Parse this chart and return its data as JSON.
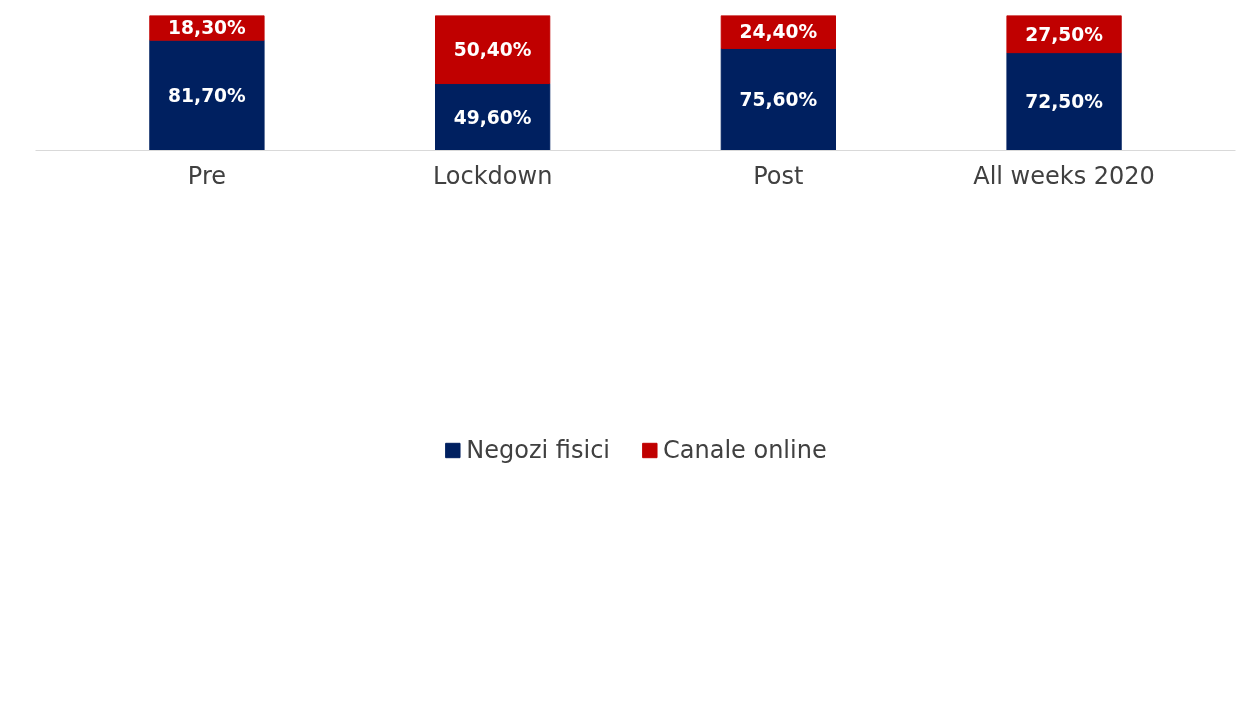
{
  "chart_data": {
    "type": "bar",
    "stacked": true,
    "categories": [
      "Pre",
      "Lockdown",
      "Post",
      "All weeks 2020"
    ],
    "series": [
      {
        "name": "Negozi fisici",
        "color": "#002060",
        "values": [
          81.7,
          49.6,
          75.6,
          72.5
        ],
        "value_labels": [
          "81,70%",
          "49,60%",
          "75,60%",
          "72,50%"
        ]
      },
      {
        "name": "Canale online",
        "color": "#c00000",
        "values": [
          18.3,
          50.4,
          24.4,
          27.5
        ],
        "value_labels": [
          "18,30%",
          "50,40%",
          "24,40%",
          "27,50%"
        ]
      }
    ],
    "ylim": [
      0,
      100
    ],
    "tick_labels": "x",
    "legend": "bottom"
  }
}
